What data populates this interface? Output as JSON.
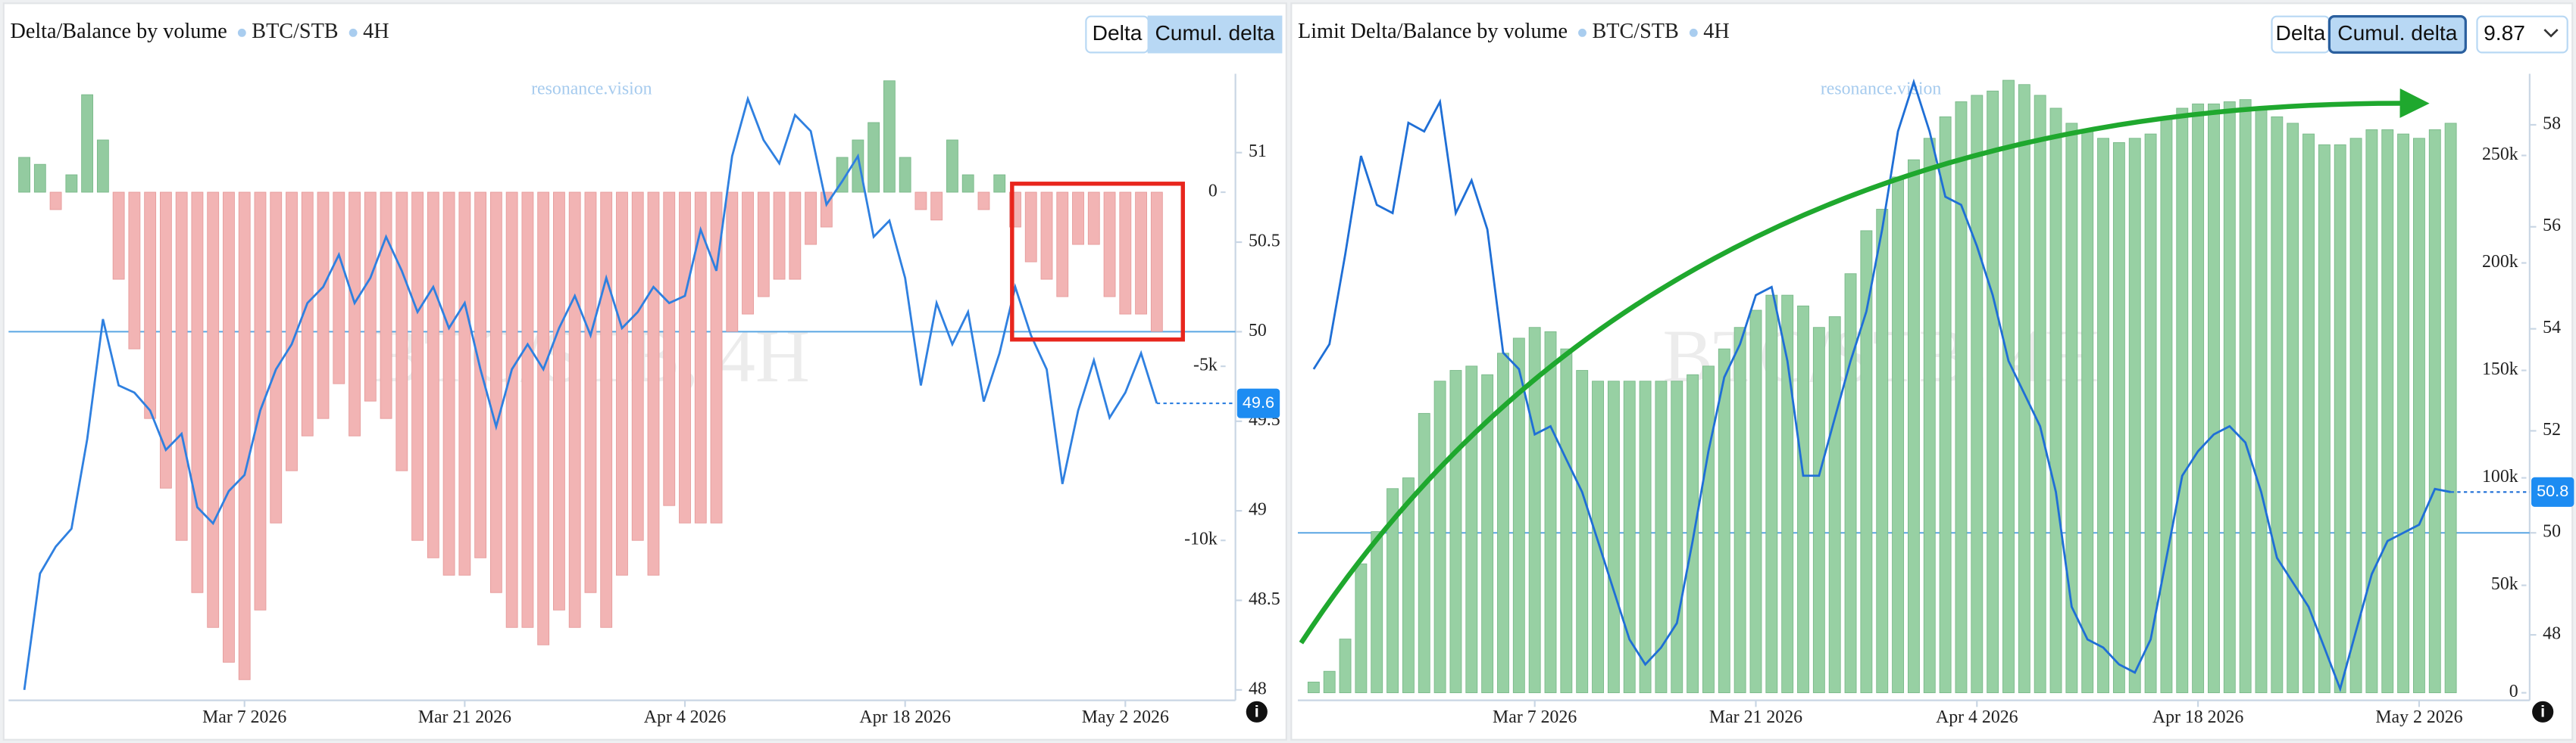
{
  "chart_data": [
    {
      "type": "combo",
      "title": "Delta/Balance by volume",
      "legend": [
        "BTC/STB",
        "4H"
      ],
      "buttons": [
        "Delta",
        "Cumul. delta"
      ],
      "watermark": "resonance.vision",
      "watermark_symbol": "BTC/STB, 4H",
      "info": "i",
      "x": [
        "2026-02-21",
        "2026-02-22",
        "2026-02-23",
        "2026-02-24",
        "2026-02-25",
        "2026-02-26",
        "2026-02-27",
        "2026-02-28",
        "2026-03-01",
        "2026-03-02",
        "2026-03-03",
        "2026-03-04",
        "2026-03-05",
        "2026-03-06",
        "2026-03-07",
        "2026-03-08",
        "2026-03-09",
        "2026-03-10",
        "2026-03-11",
        "2026-03-12",
        "2026-03-13",
        "2026-03-14",
        "2026-03-15",
        "2026-03-16",
        "2026-03-17",
        "2026-03-18",
        "2026-03-19",
        "2026-03-20",
        "2026-03-21",
        "2026-03-22",
        "2026-03-23",
        "2026-03-24",
        "2026-03-25",
        "2026-03-26",
        "2026-03-27",
        "2026-03-28",
        "2026-03-29",
        "2026-03-30",
        "2026-03-31",
        "2026-04-01",
        "2026-04-02",
        "2026-04-03",
        "2026-04-04",
        "2026-04-05",
        "2026-04-06",
        "2026-04-07",
        "2026-04-08",
        "2026-04-09",
        "2026-04-10",
        "2026-04-11",
        "2026-04-12",
        "2026-04-13",
        "2026-04-14",
        "2026-04-15",
        "2026-04-16",
        "2026-04-17",
        "2026-04-18",
        "2026-04-19",
        "2026-04-20",
        "2026-04-21",
        "2026-04-22",
        "2026-04-23",
        "2026-04-24",
        "2026-04-25",
        "2026-04-26",
        "2026-04-27",
        "2026-04-28",
        "2026-04-29",
        "2026-04-30",
        "2026-05-01",
        "2026-05-02",
        "2026-05-03",
        "2026-05-04"
      ],
      "xlim": [
        "2026-02-20",
        "2026-05-09"
      ],
      "xticks": [
        {
          "value": "2026-03-07",
          "label": "Mar 7 2026"
        },
        {
          "value": "2026-03-21",
          "label": "Mar 21 2026"
        },
        {
          "value": "2026-04-04",
          "label": "Apr 4 2026"
        },
        {
          "value": "2026-04-18",
          "label": "Apr 18 2026"
        },
        {
          "value": "2026-05-02",
          "label": "May 2 2026"
        }
      ],
      "ylim": [
        -14500,
        3400
      ],
      "yticks": [
        0,
        {
          "value": -5000,
          "label": "-5k"
        },
        {
          "value": -10000,
          "label": "-10k"
        }
      ],
      "y2lim": [
        47.96,
        51.44
      ],
      "y2ticks": [
        48,
        48.5,
        49,
        49.5,
        50,
        50.5,
        51
      ],
      "hline": 50,
      "series": [
        {
          "type": "bar",
          "color": "#93cba0",
          "negative_color": "#f2b4b4",
          "values": [
            1000,
            800,
            -500,
            500,
            2800,
            1500,
            -2500,
            -4500,
            -6500,
            -8500,
            -10000,
            -11500,
            -12500,
            -13500,
            -14000,
            -12000,
            -9500,
            -8000,
            -7000,
            -6500,
            -5500,
            -7000,
            -6000,
            -6500,
            -8000,
            -10000,
            -10500,
            -11000,
            -11000,
            -10500,
            -11500,
            -12500,
            -12500,
            -13000,
            -12000,
            -12500,
            -11500,
            -12500,
            -11000,
            -10000,
            -11000,
            -9000,
            -9500,
            -9500,
            -9500,
            -4000,
            -3500,
            -3000,
            -2500,
            -2500,
            -1500,
            -1000,
            1000,
            1500,
            2000,
            3200,
            1000,
            -500,
            -800,
            1500,
            500,
            -500,
            500,
            -1000,
            -2000,
            -2500,
            -3000,
            -1500,
            -1500,
            -3000,
            -3500,
            -3500,
            -4000
          ]
        },
        {
          "type": "line",
          "axis": "y2",
          "color": "#2f80e0",
          "values": [
            48.0,
            48.65,
            48.8,
            48.9,
            49.4,
            50.07,
            49.7,
            49.66,
            49.56,
            49.34,
            49.43,
            49.02,
            48.93,
            49.11,
            49.2,
            49.56,
            49.79,
            49.93,
            50.16,
            50.25,
            50.43,
            50.16,
            50.3,
            50.53,
            50.34,
            50.11,
            50.25,
            50.02,
            50.16,
            49.79,
            49.47,
            49.79,
            49.93,
            49.79,
            50.02,
            50.2,
            49.98,
            50.3,
            50.02,
            50.11,
            50.25,
            50.16,
            50.2,
            50.57,
            50.34,
            50.98,
            51.3,
            51.07,
            50.94,
            51.21,
            51.12,
            50.71,
            50.84,
            50.98,
            50.53,
            50.62,
            50.3,
            49.7,
            50.16,
            49.93,
            50.11,
            49.61,
            49.88,
            50.25,
            49.98,
            49.79,
            49.15,
            49.56,
            49.84,
            49.52,
            49.66,
            49.88,
            49.6
          ]
        }
      ]
    },
    {
      "type": "combo",
      "title": "Limit Delta/Balance by volume",
      "legend": [
        "BTC/STB",
        "4H"
      ],
      "buttons": [
        "Delta",
        "Cumul. delta"
      ],
      "dropdown": "9.87",
      "watermark": "resonance.vision",
      "watermark_symbol": "BTC/STB, 4H",
      "info": "i",
      "x": [
        "2026-02-21",
        "2026-02-22",
        "2026-02-23",
        "2026-02-24",
        "2026-02-25",
        "2026-02-26",
        "2026-02-27",
        "2026-02-28",
        "2026-03-01",
        "2026-03-02",
        "2026-03-03",
        "2026-03-04",
        "2026-03-05",
        "2026-03-06",
        "2026-03-07",
        "2026-03-08",
        "2026-03-09",
        "2026-03-10",
        "2026-03-11",
        "2026-03-12",
        "2026-03-13",
        "2026-03-14",
        "2026-03-15",
        "2026-03-16",
        "2026-03-17",
        "2026-03-18",
        "2026-03-19",
        "2026-03-20",
        "2026-03-21",
        "2026-03-22",
        "2026-03-23",
        "2026-03-24",
        "2026-03-25",
        "2026-03-26",
        "2026-03-27",
        "2026-03-28",
        "2026-03-29",
        "2026-03-30",
        "2026-03-31",
        "2026-04-01",
        "2026-04-02",
        "2026-04-03",
        "2026-04-04",
        "2026-04-05",
        "2026-04-06",
        "2026-04-07",
        "2026-04-08",
        "2026-04-09",
        "2026-04-10",
        "2026-04-11",
        "2026-04-12",
        "2026-04-13",
        "2026-04-14",
        "2026-04-15",
        "2026-04-16",
        "2026-04-17",
        "2026-04-18",
        "2026-04-19",
        "2026-04-20",
        "2026-04-21",
        "2026-04-22",
        "2026-04-23",
        "2026-04-24",
        "2026-04-25",
        "2026-04-26",
        "2026-04-27",
        "2026-04-28",
        "2026-04-29",
        "2026-04-30",
        "2026-05-01",
        "2026-05-02",
        "2026-05-03",
        "2026-05-04"
      ],
      "xlim": [
        "2026-02-20",
        "2026-05-09"
      ],
      "xticks": [
        {
          "value": "2026-03-07",
          "label": "Mar 7 2026"
        },
        {
          "value": "2026-03-21",
          "label": "Mar 21 2026"
        },
        {
          "value": "2026-04-04",
          "label": "Apr 4 2026"
        },
        {
          "value": "2026-04-18",
          "label": "Apr 18 2026"
        },
        {
          "value": "2026-05-02",
          "label": "May 2 2026"
        }
      ],
      "ylim": [
        -2000,
        288000
      ],
      "yticks": [
        0,
        {
          "value": 50000,
          "label": "50k"
        },
        {
          "value": 100000,
          "label": "100k"
        },
        {
          "value": 150000,
          "label": "150k"
        },
        {
          "value": 200000,
          "label": "200k"
        },
        {
          "value": 250000,
          "label": "250k"
        }
      ],
      "y2lim": [
        46.78,
        59
      ],
      "y2ticks": [
        48,
        50,
        52,
        54,
        56,
        58
      ],
      "hline": 50,
      "series": [
        {
          "type": "bar",
          "color": "#97d0a3",
          "negative_color": "#f2b4b4",
          "values": [
            5000,
            10000,
            25000,
            60000,
            75000,
            95000,
            100000,
            130000,
            145000,
            150000,
            152000,
            148000,
            158000,
            165000,
            170000,
            168000,
            160000,
            150000,
            145000,
            145000,
            145000,
            145000,
            145000,
            145000,
            148000,
            152000,
            160000,
            170000,
            178000,
            185000,
            185000,
            180000,
            170000,
            175000,
            195000,
            215000,
            225000,
            240000,
            248000,
            258000,
            268000,
            275000,
            278000,
            280000,
            285000,
            283000,
            278000,
            272000,
            265000,
            262000,
            258000,
            256000,
            258000,
            260000,
            268000,
            272000,
            274000,
            274000,
            275000,
            276000,
            272000,
            268000,
            265000,
            260000,
            255000,
            255000,
            258000,
            262000,
            262000,
            260000,
            258000,
            262000,
            265000
          ]
        },
        {
          "type": "line",
          "axis": "y2",
          "color": "#1f6fd6",
          "values": [
            53.21,
            53.7,
            55.46,
            57.39,
            56.43,
            56.27,
            58.04,
            57.87,
            58.45,
            56.27,
            56.91,
            55.95,
            53.53,
            53.21,
            51.93,
            52.09,
            51.44,
            50.8,
            49.84,
            48.87,
            47.91,
            47.42,
            47.75,
            48.23,
            49.84,
            51.6,
            53.05,
            53.7,
            54.66,
            54.82,
            53.37,
            51.12,
            51.12,
            52.25,
            53.37,
            54.34,
            55.95,
            57.87,
            58.84,
            57.87,
            56.59,
            56.43,
            55.62,
            54.66,
            53.37,
            52.73,
            52.09,
            50.8,
            48.55,
            47.91,
            47.75,
            47.42,
            47.26,
            47.91,
            49.51,
            51.12,
            51.6,
            51.93,
            52.09,
            51.77,
            50.8,
            49.51,
            49.03,
            48.55,
            47.75,
            46.94,
            48.07,
            49.19,
            49.84,
            50.0,
            50.16,
            50.86,
            50.8
          ]
        }
      ]
    }
  ]
}
